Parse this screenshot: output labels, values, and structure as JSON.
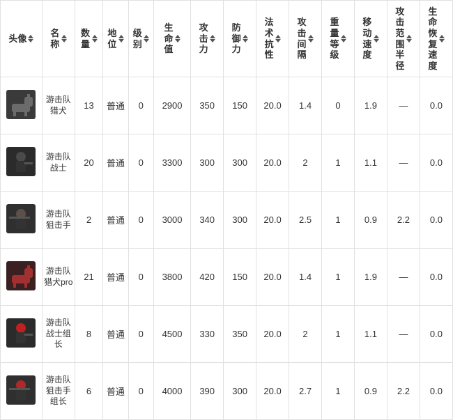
{
  "header": {
    "avatar": "头像",
    "name": "名称",
    "count": "数量",
    "position": "地位",
    "level": "级别",
    "hp": "生命值",
    "atk": "攻击力",
    "def": "防御力",
    "res": "法术抗性",
    "interval": "攻击间隔",
    "weight": "重量等级",
    "moveSpeed": "移动速度",
    "atkRange": "攻击范围半径",
    "hpRegen": "生命恢复速度"
  },
  "rows": [
    {
      "avatar": {
        "bg": "#3a3a3a",
        "accent": "#6b6b6b",
        "type": "dog"
      },
      "name": "游击队猎犬",
      "count": "13",
      "position": "普通",
      "level": "0",
      "hp": "2900",
      "atk": "350",
      "def": "150",
      "res": "20.0",
      "interval": "1.4",
      "weight": "0",
      "moveSpeed": "1.9",
      "atkRange": "—",
      "hpRegen": "0.0"
    },
    {
      "avatar": {
        "bg": "#2b2b2b",
        "accent": "#4a4a4a",
        "type": "soldier"
      },
      "name": "游击队战士",
      "count": "20",
      "position": "普通",
      "level": "0",
      "hp": "3300",
      "atk": "300",
      "def": "300",
      "res": "20.0",
      "interval": "2",
      "weight": "1",
      "moveSpeed": "1.1",
      "atkRange": "—",
      "hpRegen": "0.0"
    },
    {
      "avatar": {
        "bg": "#2f2f2f",
        "accent": "#5c5048",
        "type": "sniper"
      },
      "name": "游击队狙击手",
      "count": "2",
      "position": "普通",
      "level": "0",
      "hp": "3000",
      "atk": "340",
      "def": "300",
      "res": "20.0",
      "interval": "2.5",
      "weight": "1",
      "moveSpeed": "0.9",
      "atkRange": "2.2",
      "hpRegen": "0.0"
    },
    {
      "avatar": {
        "bg": "#3a2020",
        "accent": "#a33030",
        "type": "dogpro"
      },
      "name": "游击队猎犬pro",
      "count": "21",
      "position": "普通",
      "level": "0",
      "hp": "3800",
      "atk": "420",
      "def": "150",
      "res": "20.0",
      "interval": "1.4",
      "weight": "1",
      "moveSpeed": "1.9",
      "atkRange": "—",
      "hpRegen": "0.0"
    },
    {
      "avatar": {
        "bg": "#2b2b2b",
        "accent": "#c02020",
        "type": "leader"
      },
      "name": "游击队战士组长",
      "count": "8",
      "position": "普通",
      "level": "0",
      "hp": "4500",
      "atk": "330",
      "def": "350",
      "res": "20.0",
      "interval": "2",
      "weight": "1",
      "moveSpeed": "1.1",
      "atkRange": "—",
      "hpRegen": "0.0"
    },
    {
      "avatar": {
        "bg": "#2f2f2f",
        "accent": "#b02828",
        "type": "sniperlead"
      },
      "name": "游击队狙击手组长",
      "count": "6",
      "position": "普通",
      "level": "0",
      "hp": "4000",
      "atk": "390",
      "def": "300",
      "res": "20.0",
      "interval": "2.7",
      "weight": "1",
      "moveSpeed": "0.9",
      "atkRange": "2.2",
      "hpRegen": "0.0"
    }
  ]
}
